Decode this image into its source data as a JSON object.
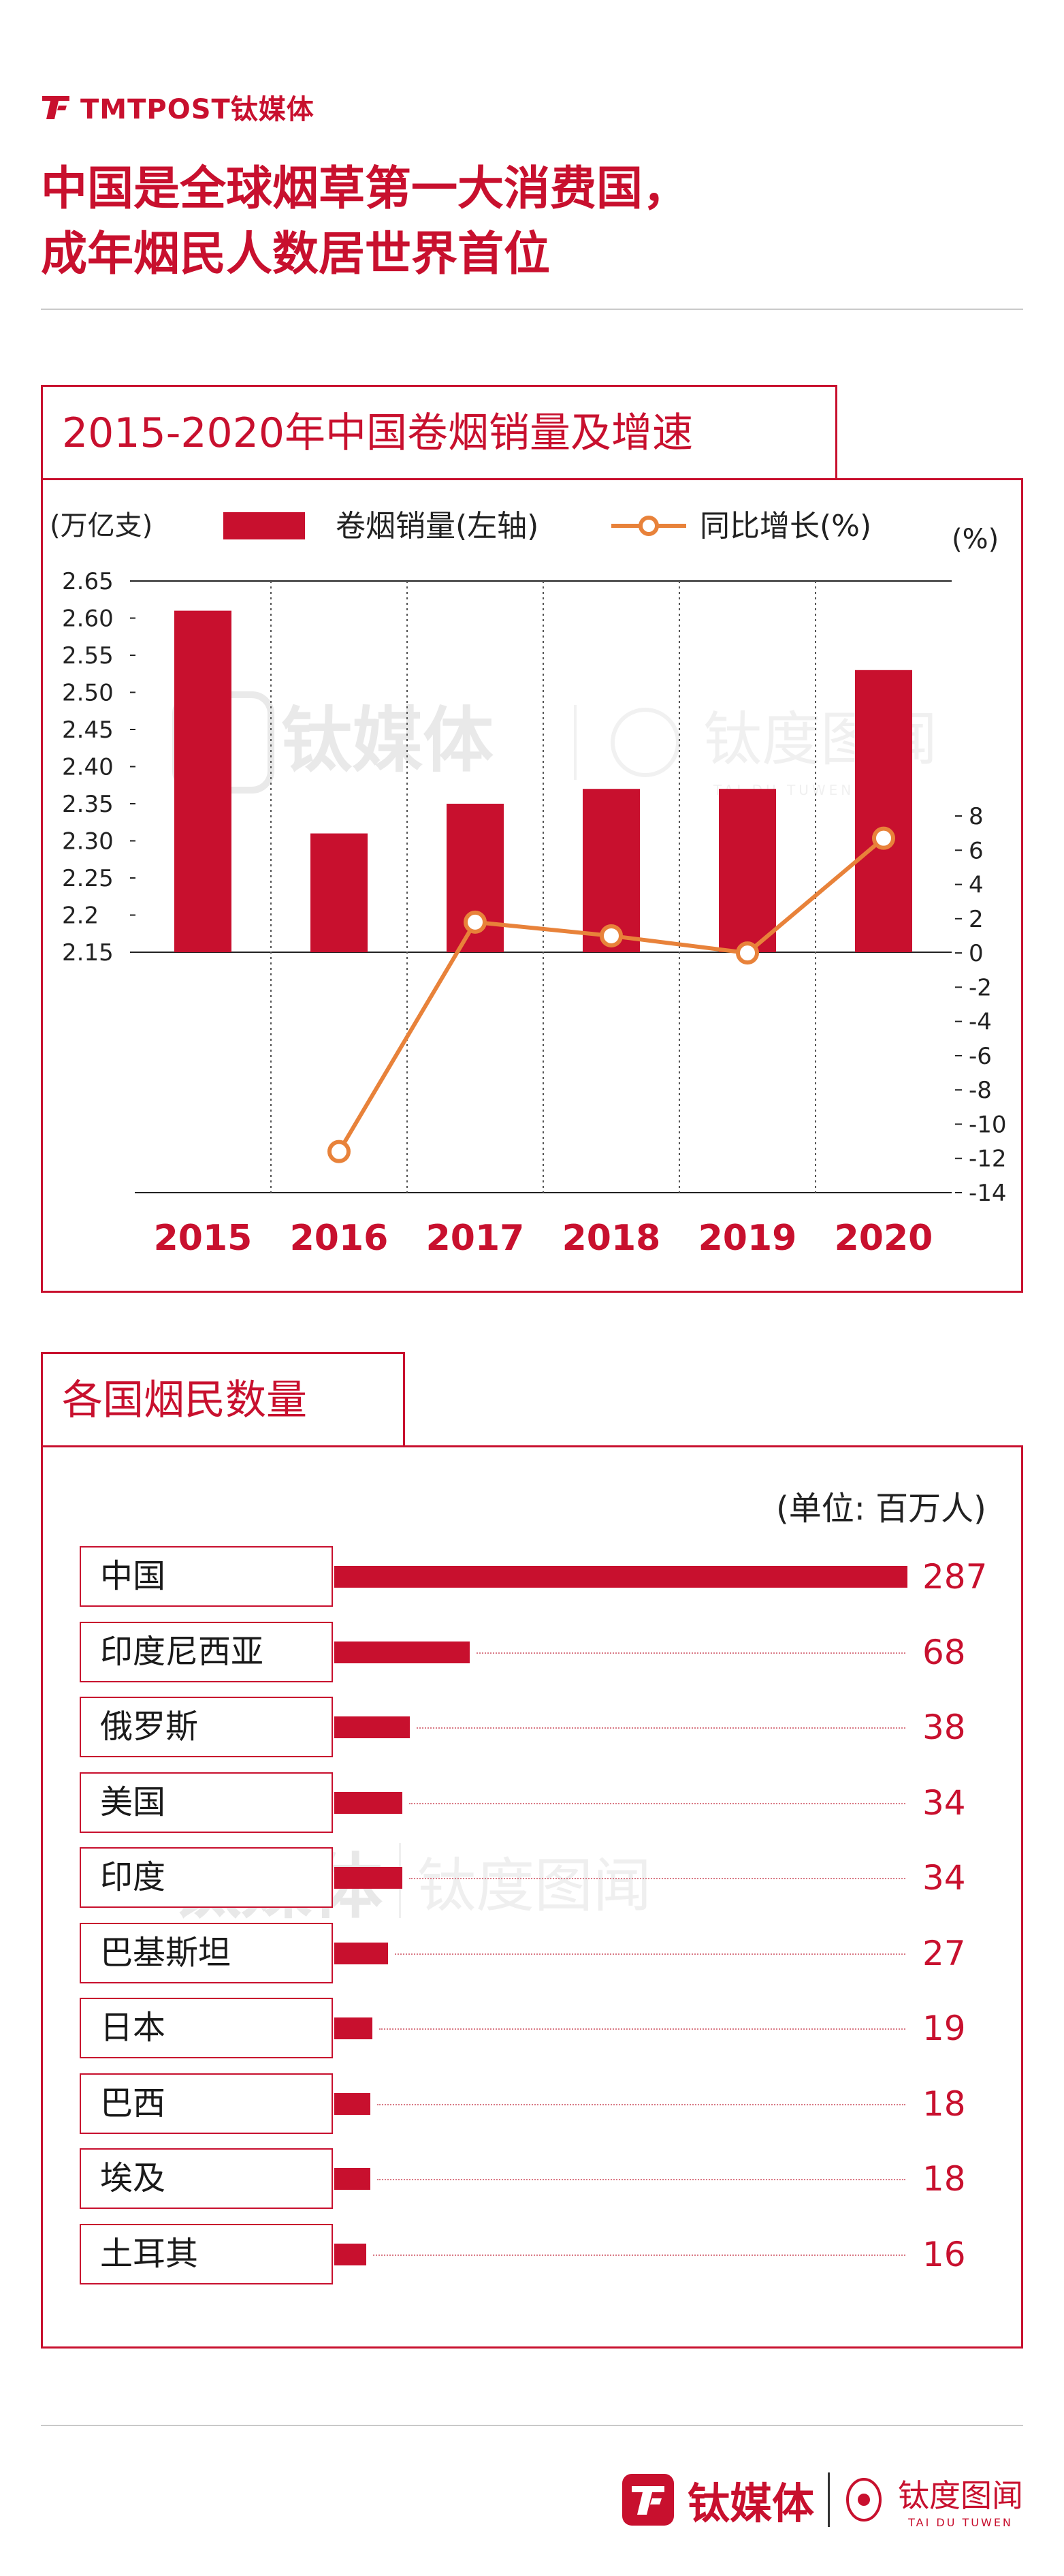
{
  "brand": {
    "logo_text": "TMTPOST钛媒体",
    "footer_cn": "钛媒体",
    "footer_cn2": "钛度图闻",
    "footer_en": "TAI DU TUWEN",
    "accent": "#c8102e",
    "line_color": "#e8823a"
  },
  "headline": {
    "line1": "中国是全球烟草第一大消费国，",
    "line2": "成年烟民人数居世界首位"
  },
  "watermark": {
    "cn": "钛媒体",
    "cn2": "钛度图闻",
    "en": "TAI DU TUWEN"
  },
  "chart_data": [
    {
      "type": "bar",
      "title": "2015-2020年中国卷烟销量及增速",
      "left_unit": "(万亿支)",
      "right_unit": "(%)",
      "legend_bar": "卷烟销量(左轴",
      "legend_bar_close": ")",
      "legend_line": "同比增长(%)",
      "categories": [
        "2015",
        "2016",
        "2017",
        "2018",
        "2019",
        "2020"
      ],
      "series": [
        {
          "name": "卷烟销量(左轴)",
          "type": "bar",
          "axis": "left",
          "values": [
            2.61,
            2.31,
            2.35,
            2.37,
            2.37,
            2.53
          ]
        },
        {
          "name": "同比增长(%)",
          "type": "line",
          "axis": "right",
          "values": [
            null,
            -11.6,
            1.8,
            1.0,
            0.0,
            6.7
          ]
        }
      ],
      "left_ticks": [
        "2.65",
        "2.60",
        "2.55",
        "2.50",
        "2.45",
        "2.40",
        "2.35",
        "2.30",
        "2.25",
        "2.2",
        "2.15"
      ],
      "right_ticks": [
        "8",
        "6",
        "4",
        "2",
        "0",
        "-2",
        "-4",
        "-6",
        "-8",
        "-10",
        "-12",
        "-14"
      ],
      "ylim_left": [
        2.15,
        2.65
      ],
      "ylim_right": [
        -14,
        8
      ]
    },
    {
      "type": "bar",
      "orientation": "horizontal",
      "title": "各国烟民数量",
      "unit": "(单位: 百万人)",
      "categories": [
        "中国",
        "印度尼西亚",
        "俄罗斯",
        "美国",
        "印度",
        "巴基斯坦",
        "日本",
        "巴西",
        "埃及",
        "土耳其"
      ],
      "values": [
        287,
        68,
        38,
        34,
        34,
        27,
        19,
        18,
        18,
        16
      ],
      "value_labels": [
        "287",
        "68",
        "38",
        "34",
        "34",
        "27",
        "19",
        "18",
        "18",
        "16"
      ]
    }
  ]
}
